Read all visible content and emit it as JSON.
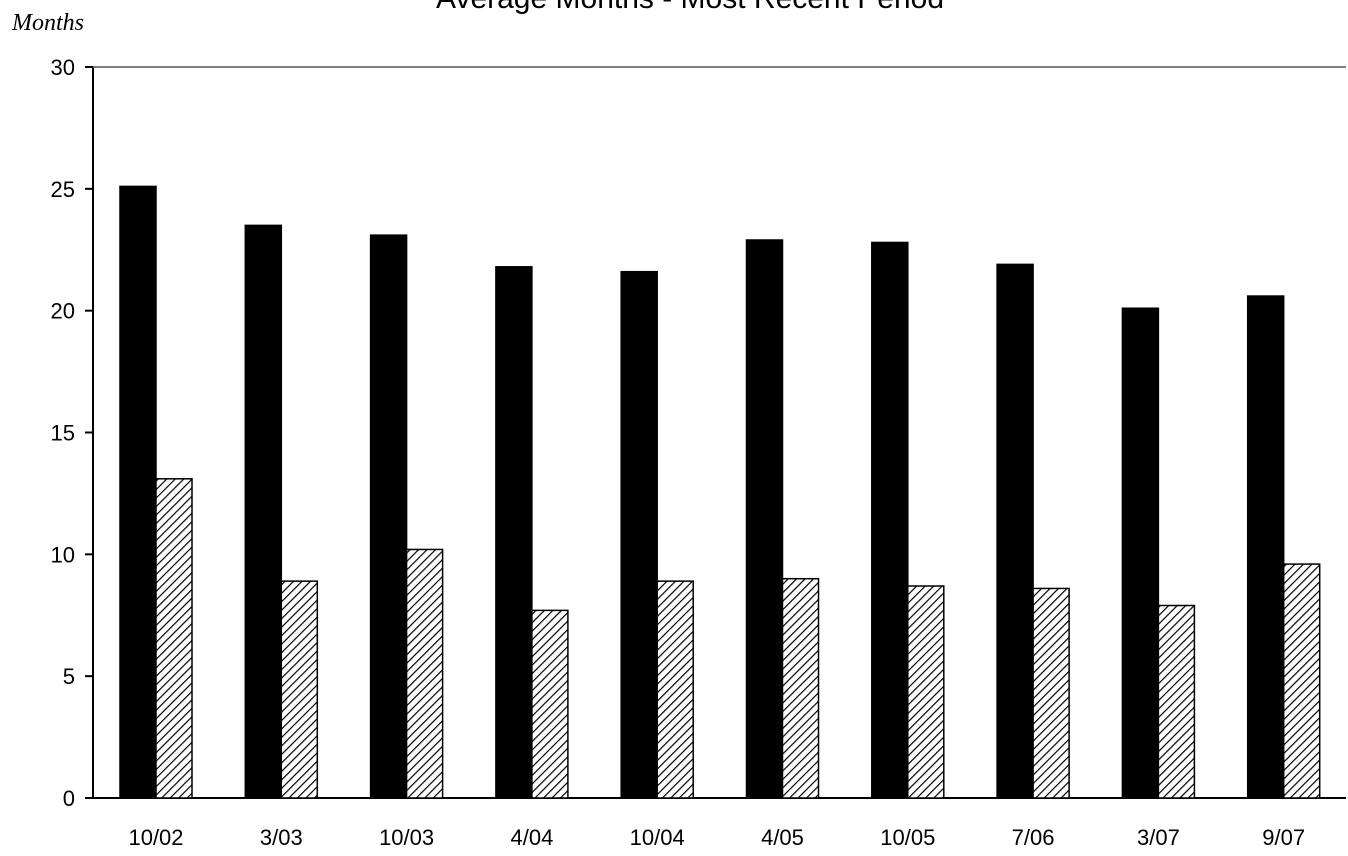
{
  "chart_data": {
    "type": "bar",
    "title": "Average Months - Most Recent Period",
    "xlabel": "",
    "ylabel": "Months",
    "ylim": [
      0,
      30
    ],
    "yticks": [
      0,
      5,
      10,
      15,
      20,
      25,
      30
    ],
    "grid": false,
    "legend": "none",
    "categories": [
      "10/02",
      "3/03",
      "10/03",
      "4/04",
      "10/04",
      "4/05",
      "10/05",
      "7/06",
      "3/07",
      "9/07"
    ],
    "series": [
      {
        "fill": "solid",
        "color": "#000000",
        "values": [
          25.1,
          23.5,
          23.1,
          21.8,
          21.6,
          22.9,
          22.8,
          21.9,
          20.1,
          20.6
        ]
      },
      {
        "fill": "hatched",
        "color": "#000000",
        "values": [
          13.1,
          8.9,
          10.2,
          7.7,
          8.9,
          9.0,
          8.7,
          8.6,
          7.9,
          9.6
        ]
      }
    ]
  }
}
